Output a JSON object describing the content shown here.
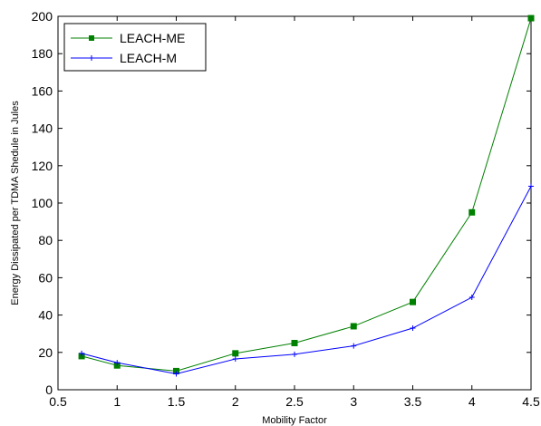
{
  "chart_data": {
    "type": "line",
    "title": "",
    "xlabel": "Mobility Factor",
    "ylabel": "Energy Dissipated per TDMA Shedule in Jules",
    "xlim": [
      0.5,
      4.5
    ],
    "ylim": [
      0,
      200
    ],
    "xticks": [
      "0.5",
      "1",
      "1.5",
      "2",
      "2.5",
      "3",
      "3.5",
      "4",
      "4.5"
    ],
    "yticks": [
      "0",
      "20",
      "40",
      "60",
      "80",
      "100",
      "120",
      "140",
      "160",
      "180",
      "200"
    ],
    "grid": false,
    "legend_position": "top-left",
    "x": [
      0.7,
      1,
      1.5,
      2,
      2.5,
      3,
      3.5,
      4,
      4.5
    ],
    "series": [
      {
        "name": "LEACH-ME",
        "color": "#008000",
        "marker": "square",
        "values": [
          18,
          13,
          10,
          19.5,
          25,
          34,
          47,
          95,
          199
        ]
      },
      {
        "name": "LEACH-M",
        "color": "#0000ff",
        "marker": "plus",
        "values": [
          19.5,
          14.5,
          8.5,
          16.5,
          19,
          23.5,
          33,
          49.5,
          109
        ]
      }
    ]
  }
}
